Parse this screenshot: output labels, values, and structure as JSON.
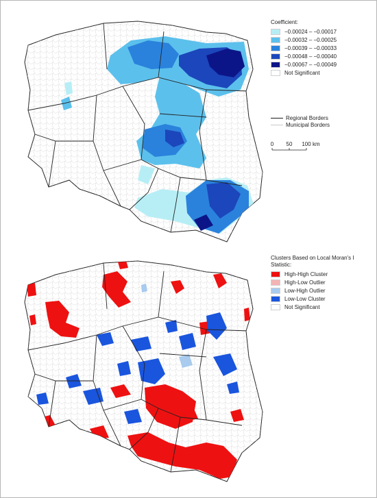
{
  "coefficient_legend": {
    "title": "Coefficient:",
    "items": [
      {
        "label": "−0.00024 – −0.00017",
        "color": "#b7eef5"
      },
      {
        "label": "−0.00032 – −0.00025",
        "color": "#5cc0ec"
      },
      {
        "label": "−0.00039 – −0.00033",
        "color": "#2a82dc"
      },
      {
        "label": "−0.00048 – −0.00040",
        "color": "#1c46bb"
      },
      {
        "label": "−0.00067 – −0.00049",
        "color": "#0c1588"
      },
      {
        "label": "Not Significant",
        "color": "#ffffff"
      }
    ]
  },
  "borders_legend": {
    "regional": "Regional Borders",
    "municipal": "Municipal Borders"
  },
  "scale_bar": {
    "ticks": [
      "0",
      "50",
      "100"
    ],
    "unit": "km"
  },
  "cluster_legend": {
    "title": "Clusters Based on Local Moran's I Statistic:",
    "items": [
      {
        "label": "High-High Cluster",
        "color": "#ee1111"
      },
      {
        "label": "High-Low Outlier",
        "color": "#f4b4b4"
      },
      {
        "label": "Low-High Outlier",
        "color": "#a8cbee"
      },
      {
        "label": "Low-Low Cluster",
        "color": "#1a55dd"
      },
      {
        "label": "Not Significant",
        "color": "#ffffff"
      }
    ]
  },
  "colors": {
    "country_fill": "#ffffff",
    "regional_border": "#1a1a1a",
    "municipal_border": "#c9c9c9"
  }
}
